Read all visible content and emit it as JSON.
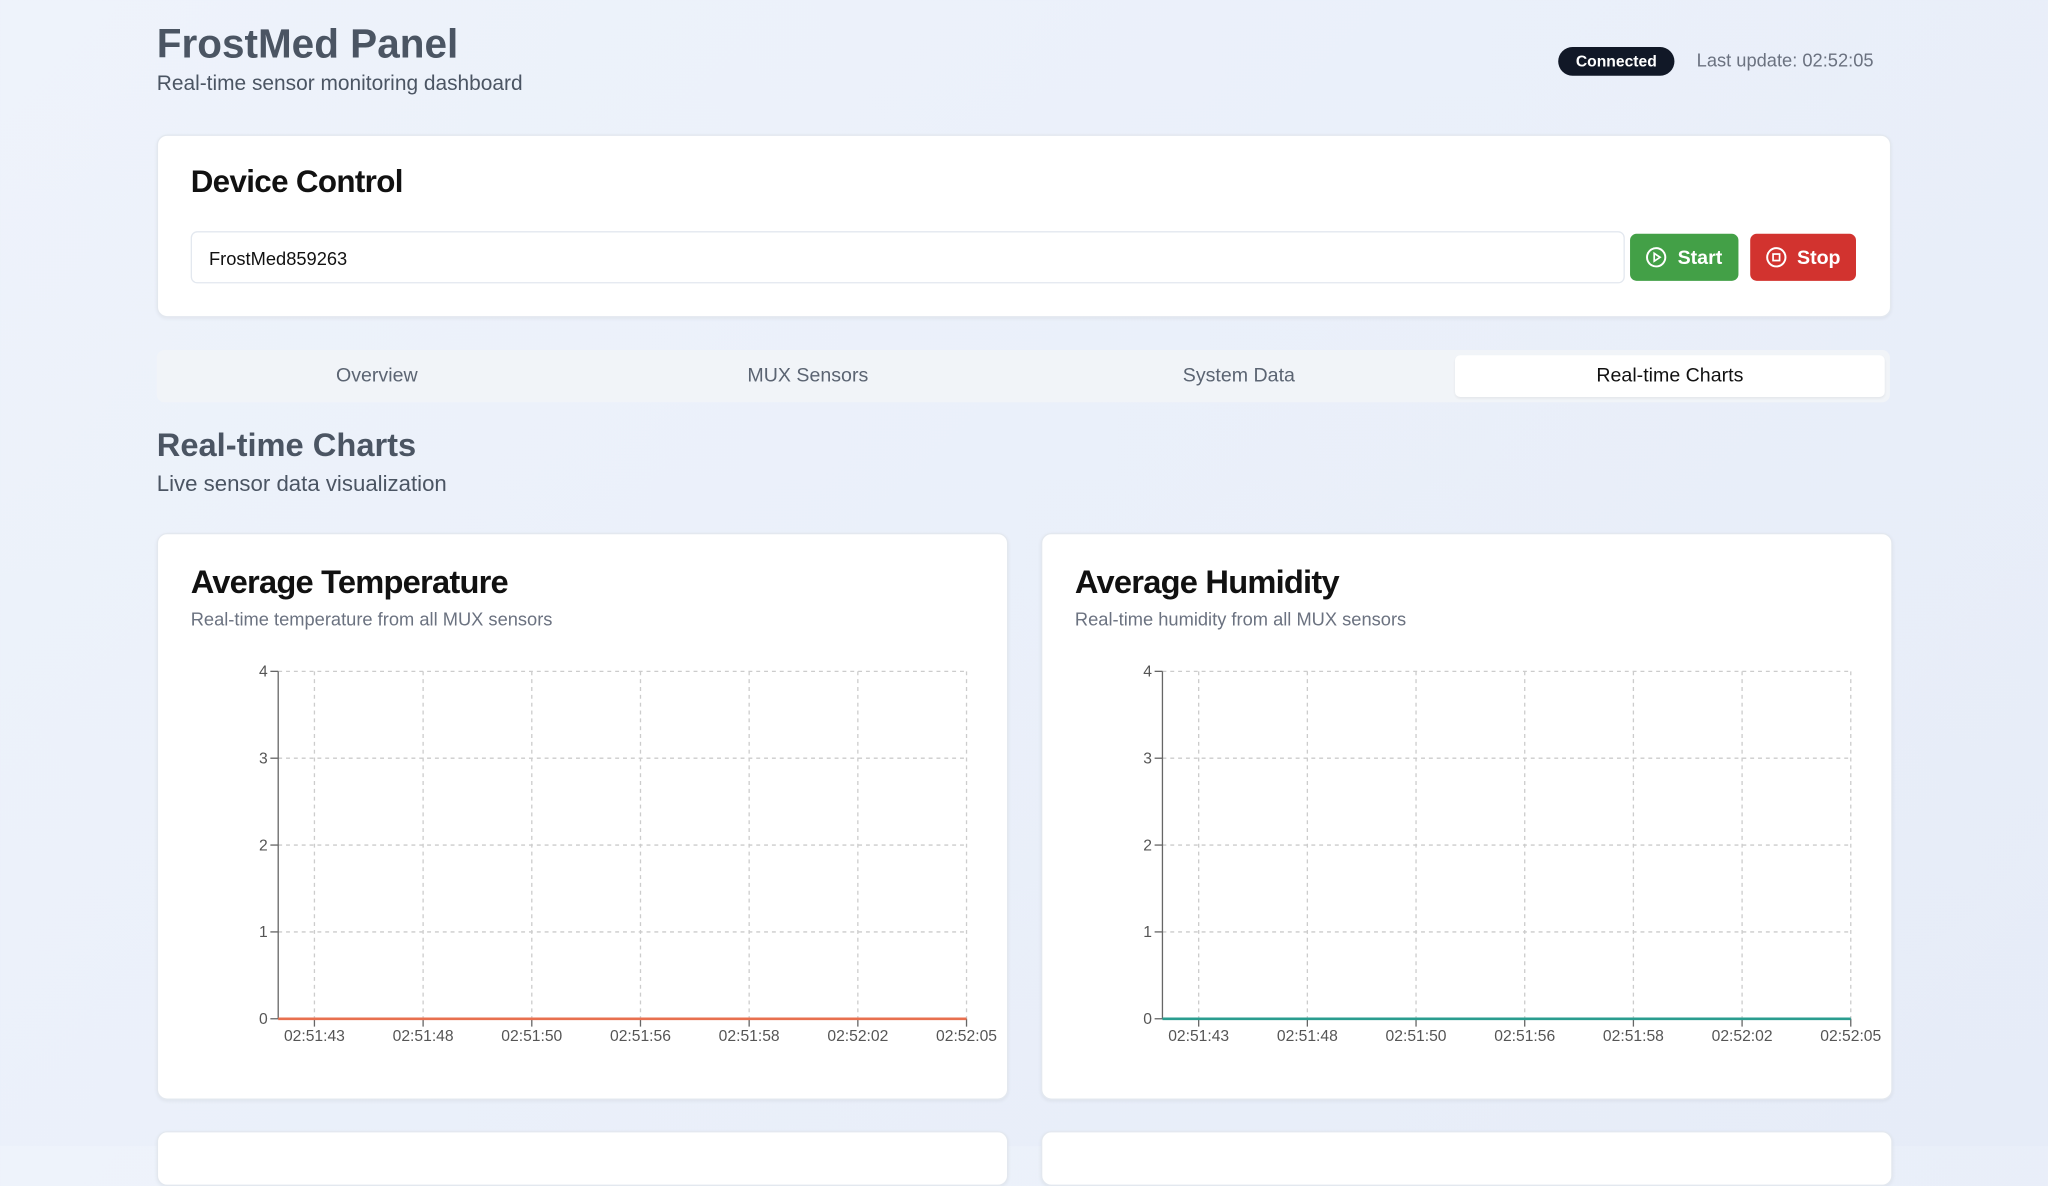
{
  "header": {
    "title": "FrostMed Panel",
    "subtitle": "Real-time sensor monitoring dashboard",
    "status": "Connected",
    "last_update": "Last update: 02:52:05"
  },
  "device_control": {
    "title": "Device Control",
    "device_id": "FrostMed859263",
    "start": "Start",
    "stop": "Stop"
  },
  "tabs": [
    "Overview",
    "MUX Sensors",
    "System Data",
    "Real-time Charts"
  ],
  "section": {
    "title": "Real-time Charts",
    "subtitle": "Live sensor data visualization"
  },
  "chart_data": [
    {
      "type": "line",
      "title": "Average Temperature",
      "subtitle": "Real-time temperature from all MUX sensors",
      "categories": [
        null,
        "02:51:43",
        null,
        null,
        "02:51:48",
        null,
        null,
        "02:51:50",
        null,
        null,
        "02:51:56",
        null,
        null,
        "02:51:58",
        null,
        null,
        "02:52:02",
        null,
        null,
        "02:52:05"
      ],
      "values": [
        0,
        0,
        0,
        0,
        0,
        0,
        0,
        0,
        0,
        0,
        0,
        0,
        0,
        0,
        0,
        0,
        0,
        0,
        0,
        0
      ],
      "color": "#e8704f",
      "ylim": [
        0,
        4
      ],
      "yticks": [
        0,
        1,
        2,
        3,
        4
      ],
      "grid": true
    },
    {
      "type": "line",
      "title": "Average Humidity",
      "subtitle": "Real-time humidity from all MUX sensors",
      "categories": [
        null,
        "02:51:43",
        null,
        null,
        "02:51:48",
        null,
        null,
        "02:51:50",
        null,
        null,
        "02:51:56",
        null,
        null,
        "02:51:58",
        null,
        null,
        "02:52:02",
        null,
        null,
        "02:52:05"
      ],
      "values": [
        0,
        0,
        0,
        0,
        0,
        0,
        0,
        0,
        0,
        0,
        0,
        0,
        0,
        0,
        0,
        0,
        0,
        0,
        0,
        0
      ],
      "color": "#2a9d8f",
      "ylim": [
        0,
        4
      ],
      "yticks": [
        0,
        1,
        2,
        3,
        4
      ],
      "grid": true
    }
  ]
}
